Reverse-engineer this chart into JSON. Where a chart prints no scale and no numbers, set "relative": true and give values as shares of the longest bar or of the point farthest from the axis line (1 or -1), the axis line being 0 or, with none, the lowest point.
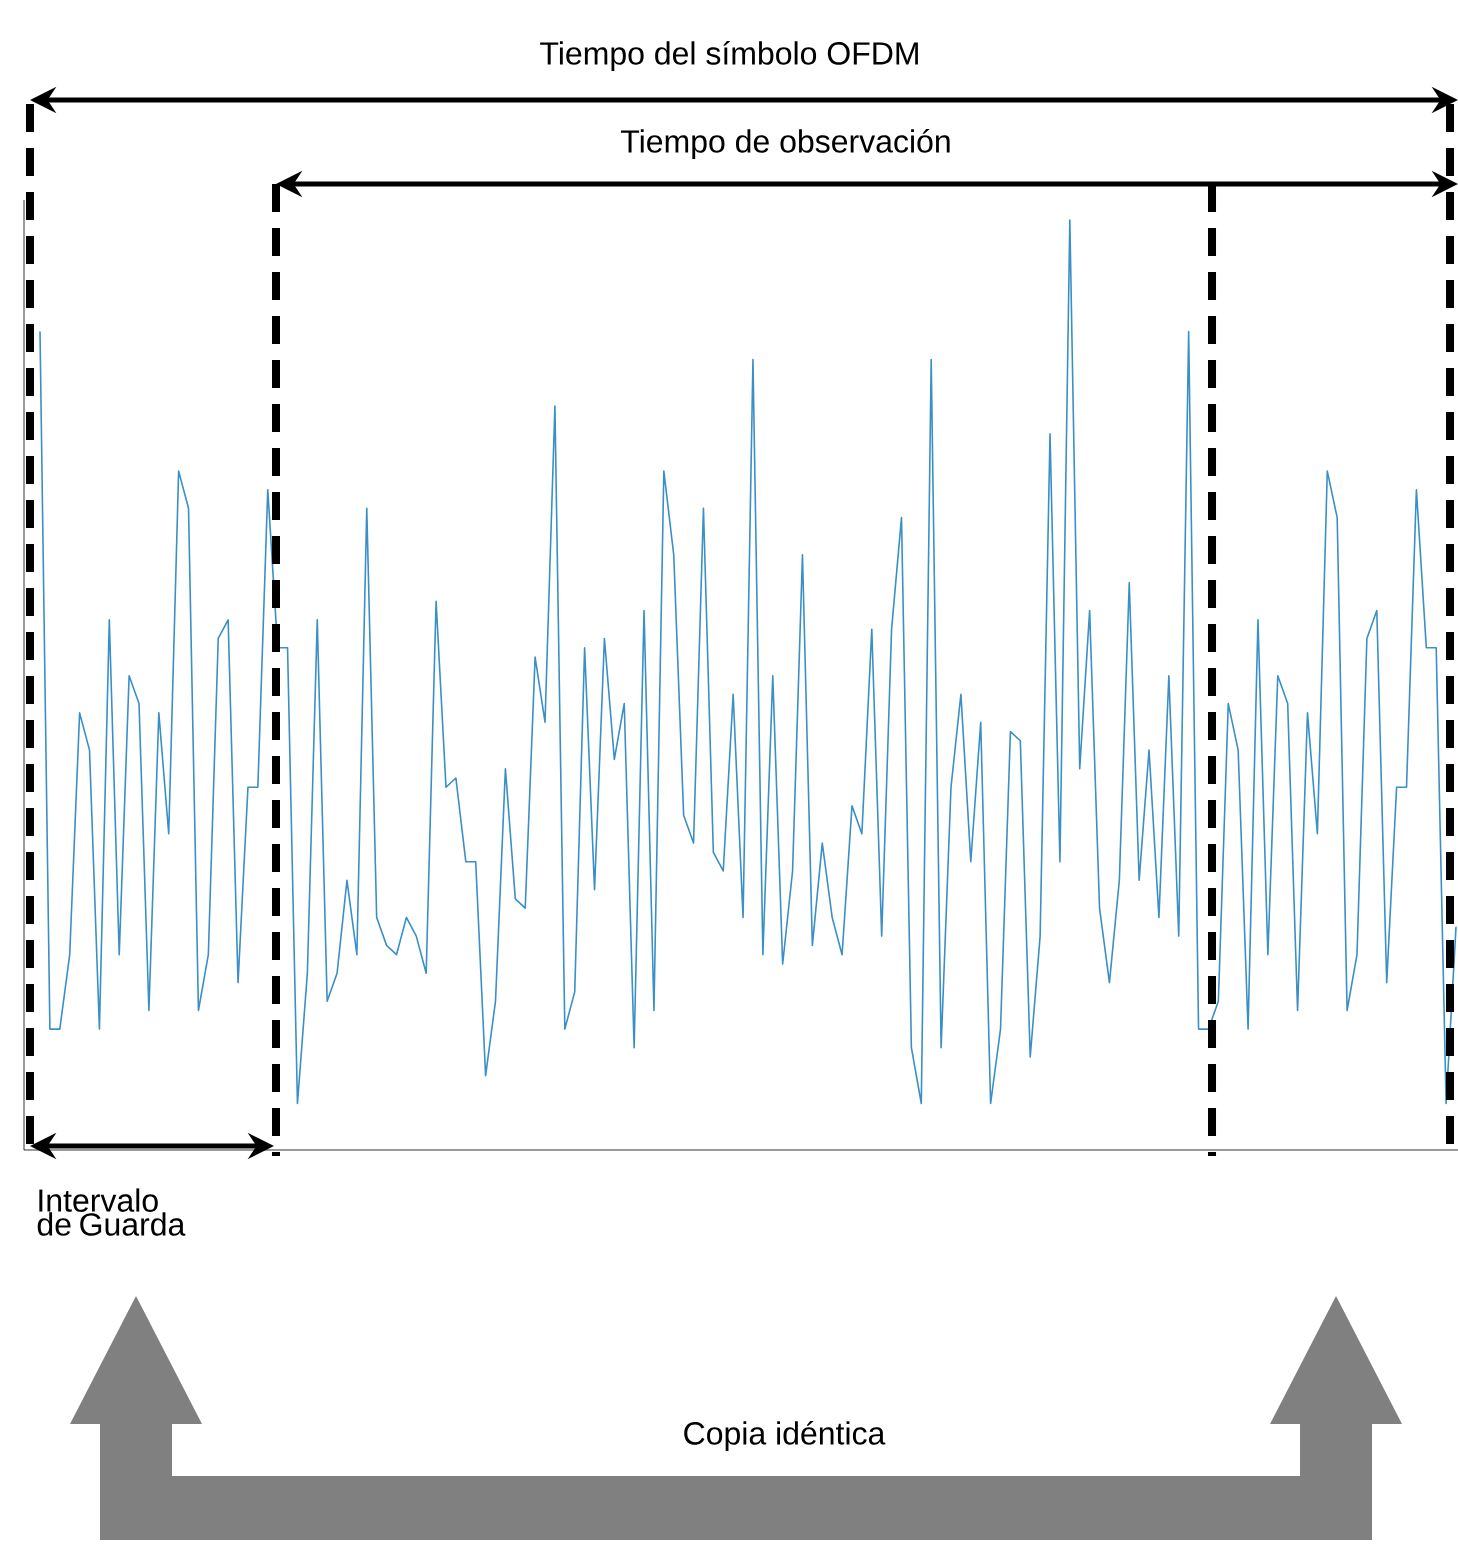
{
  "chart_data": {
    "type": "line",
    "relative": true,
    "color": "#3a8fc6",
    "categories": [
      null,
      null,
      null,
      null,
      null,
      null,
      null,
      null,
      null,
      null,
      null,
      null,
      null,
      null,
      null,
      null,
      null,
      null,
      null,
      null,
      null,
      null,
      null,
      null,
      null,
      null,
      null,
      null,
      null,
      null,
      null,
      null,
      null,
      null,
      null,
      null,
      null,
      null,
      null,
      null,
      null,
      null,
      null,
      null,
      null,
      null,
      null,
      null,
      null,
      null,
      null,
      null,
      null,
      null,
      null,
      null,
      null,
      null,
      null,
      null,
      null,
      null,
      null,
      null,
      null,
      null,
      null,
      null,
      null,
      null,
      null,
      null,
      null,
      null,
      null,
      null,
      null,
      null,
      null,
      null,
      null,
      null,
      null,
      null,
      null,
      null,
      null,
      null,
      null,
      null,
      null,
      null,
      null,
      null,
      null,
      null,
      null,
      null,
      null,
      null,
      null,
      null,
      null,
      null,
      null,
      null,
      null,
      null,
      null,
      null,
      null,
      null,
      null,
      null,
      null,
      null,
      null,
      null,
      null,
      null,
      null,
      null,
      null,
      null,
      null,
      null,
      null,
      null,
      null,
      null,
      null,
      null,
      null,
      null,
      null,
      null,
      null,
      null,
      null,
      null,
      null,
      null,
      null,
      null
    ],
    "values": [
      0.88,
      0.13,
      0.13,
      0.21,
      0.47,
      0.43,
      0.13,
      0.57,
      0.21,
      0.51,
      0.48,
      0.15,
      0.47,
      0.34,
      0.73,
      0.69,
      0.15,
      0.21,
      0.55,
      0.57,
      0.18,
      0.39,
      0.39,
      0.71,
      0.54,
      0.54,
      0.05,
      0.19,
      0.57,
      0.16,
      0.19,
      0.29,
      0.21,
      0.69,
      0.25,
      0.22,
      0.21,
      0.25,
      0.23,
      0.19,
      0.59,
      0.39,
      0.4,
      0.31,
      0.31,
      0.08,
      0.16,
      0.41,
      0.27,
      0.26,
      0.53,
      0.46,
      0.8,
      0.13,
      0.17,
      0.54,
      0.28,
      0.55,
      0.42,
      0.48,
      0.11,
      0.58,
      0.15,
      0.73,
      0.64,
      0.36,
      0.33,
      0.69,
      0.32,
      0.3,
      0.49,
      0.25,
      0.85,
      0.21,
      0.51,
      0.2,
      0.3,
      0.64,
      0.22,
      0.33,
      0.25,
      0.21,
      0.37,
      0.34,
      0.56,
      0.23,
      0.56,
      0.68,
      0.11,
      0.05,
      0.85,
      0.11,
      0.39,
      0.49,
      0.31,
      0.46,
      0.05,
      0.13,
      0.45,
      0.44,
      0.1,
      0.23,
      0.77,
      0.31,
      1.0,
      0.41,
      0.58,
      0.26,
      0.18,
      0.29,
      0.61,
      0.29,
      0.43,
      0.25,
      0.51,
      0.23,
      0.88,
      0.13,
      0.13,
      0.16,
      0.48,
      0.43,
      0.13,
      0.57,
      0.21,
      0.51,
      0.48,
      0.15,
      0.47,
      0.34,
      0.73,
      0.68,
      0.15,
      0.21,
      0.55,
      0.58,
      0.18,
      0.39,
      0.39,
      0.71,
      0.54,
      0.54,
      0.05,
      0.24
    ],
    "annotations": [
      "Tiempo del símbolo OFDM",
      "Tiempo de observación",
      "Intervalo de Guarda",
      "Copia idéntica"
    ]
  }
}
